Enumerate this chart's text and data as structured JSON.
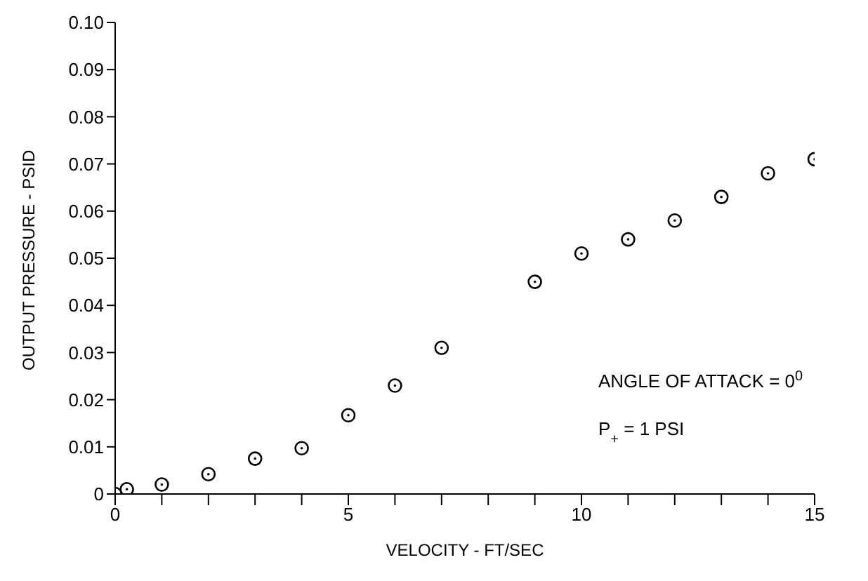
{
  "chart_data": {
    "type": "scatter",
    "xlabel": "VELOCITY - FT/SEC",
    "ylabel": "OUTPUT PRESSURE - PSID",
    "x": [
      0,
      0.25,
      1,
      2,
      3,
      4,
      5,
      6,
      7,
      9,
      10,
      11,
      12,
      13,
      14,
      15
    ],
    "series": [
      {
        "color": "#000000",
        "values": [
          0,
          0.001,
          0.002,
          0.0042,
          0.0075,
          0.0097,
          0.0167,
          0.023,
          0.031,
          0.045,
          0.051,
          0.054,
          0.058,
          0.063,
          0.068,
          0.071
        ]
      }
    ],
    "xlim": [
      0,
      15
    ],
    "xticks": [
      0,
      {
        "value": 1,
        "label": null
      },
      {
        "value": 2,
        "label": null
      },
      {
        "value": 3,
        "label": null
      },
      {
        "value": 4,
        "label": null
      },
      5,
      {
        "value": 6,
        "label": null
      },
      {
        "value": 7,
        "label": null
      },
      {
        "value": 8,
        "label": null
      },
      {
        "value": 9,
        "label": null
      },
      10,
      {
        "value": 11,
        "label": null
      },
      {
        "value": 12,
        "label": null
      },
      {
        "value": 13,
        "label": null
      },
      {
        "value": 14,
        "label": null
      },
      15
    ],
    "ylim": [
      0,
      0.1
    ],
    "yticks": [
      0,
      0.01,
      0.02,
      0.03,
      0.04,
      0.05,
      0.06,
      0.07,
      0.08,
      0.09,
      {
        "value": 0.1,
        "label": "0.10"
      }
    ],
    "annotations": [
      "ANGLE OF ATTACK = 0$^{0}$",
      "P$_{+}$ = 1 PSI"
    ],
    "marker": "circle",
    "grid": false,
    "legend": false
  }
}
